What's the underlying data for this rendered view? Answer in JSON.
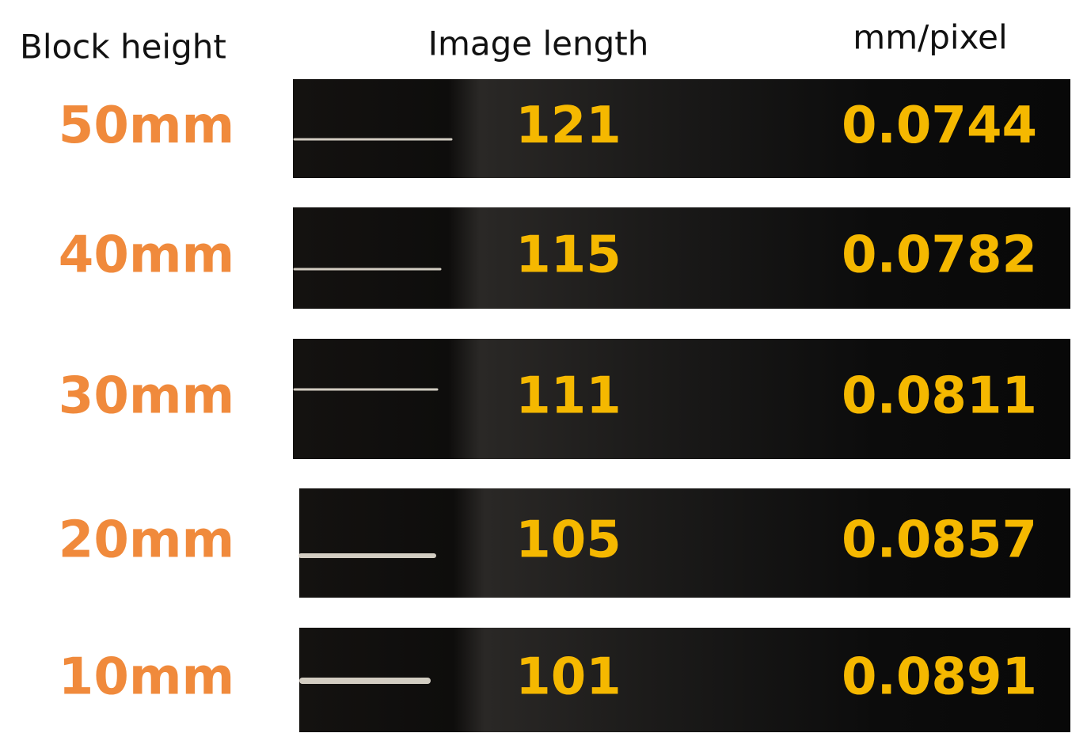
{
  "header": {
    "col1": "Block height",
    "col2": "Image length",
    "col3": "mm/pixel"
  },
  "table": {
    "rows": [
      [
        "50mm",
        "121",
        "0.0744"
      ],
      [
        "40mm",
        "115",
        "0.0782"
      ],
      [
        "30mm",
        "111",
        "0.0811"
      ],
      [
        "20mm",
        "105",
        "0.0857"
      ],
      [
        "10mm",
        "101",
        "0.0891"
      ]
    ]
  }
}
